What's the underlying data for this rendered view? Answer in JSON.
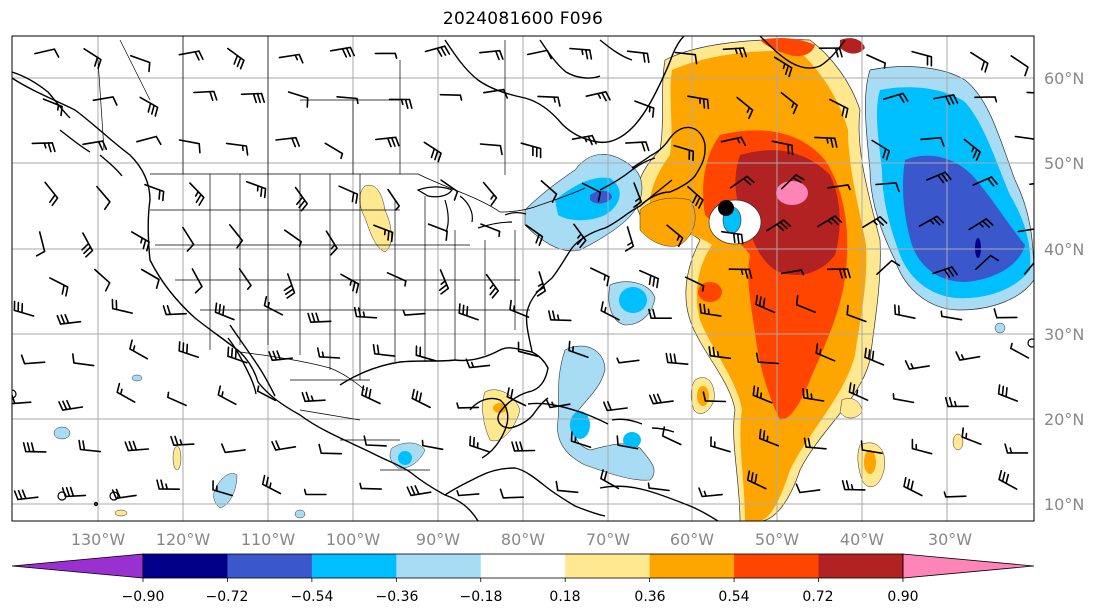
{
  "title": "2024081600 F096",
  "longitude_labels": [
    "130°W",
    "120°W",
    "110°W",
    "100°W",
    "90°W",
    "80°W",
    "70°W",
    "60°W",
    "50°W",
    "40°W",
    "30°W"
  ],
  "latitude_labels": [
    "60°N",
    "50°N",
    "40°N",
    "30°N",
    "20°N",
    "10°N"
  ],
  "colorbar": {
    "tick_labels": [
      "−0.90",
      "−0.72",
      "−0.54",
      "−0.36",
      "−0.18",
      "0.18",
      "0.36",
      "0.54",
      "0.72",
      "0.90"
    ],
    "colors": [
      "#9b30d0",
      "#00008b",
      "#3a57cc",
      "#00bfff",
      "#a8dcf5",
      "#ffffff",
      "#ffe890",
      "#ffa500",
      "#ff4500",
      "#b22222",
      "#ff85b8"
    ],
    "extend": "both"
  },
  "marker": "storm-center"
}
